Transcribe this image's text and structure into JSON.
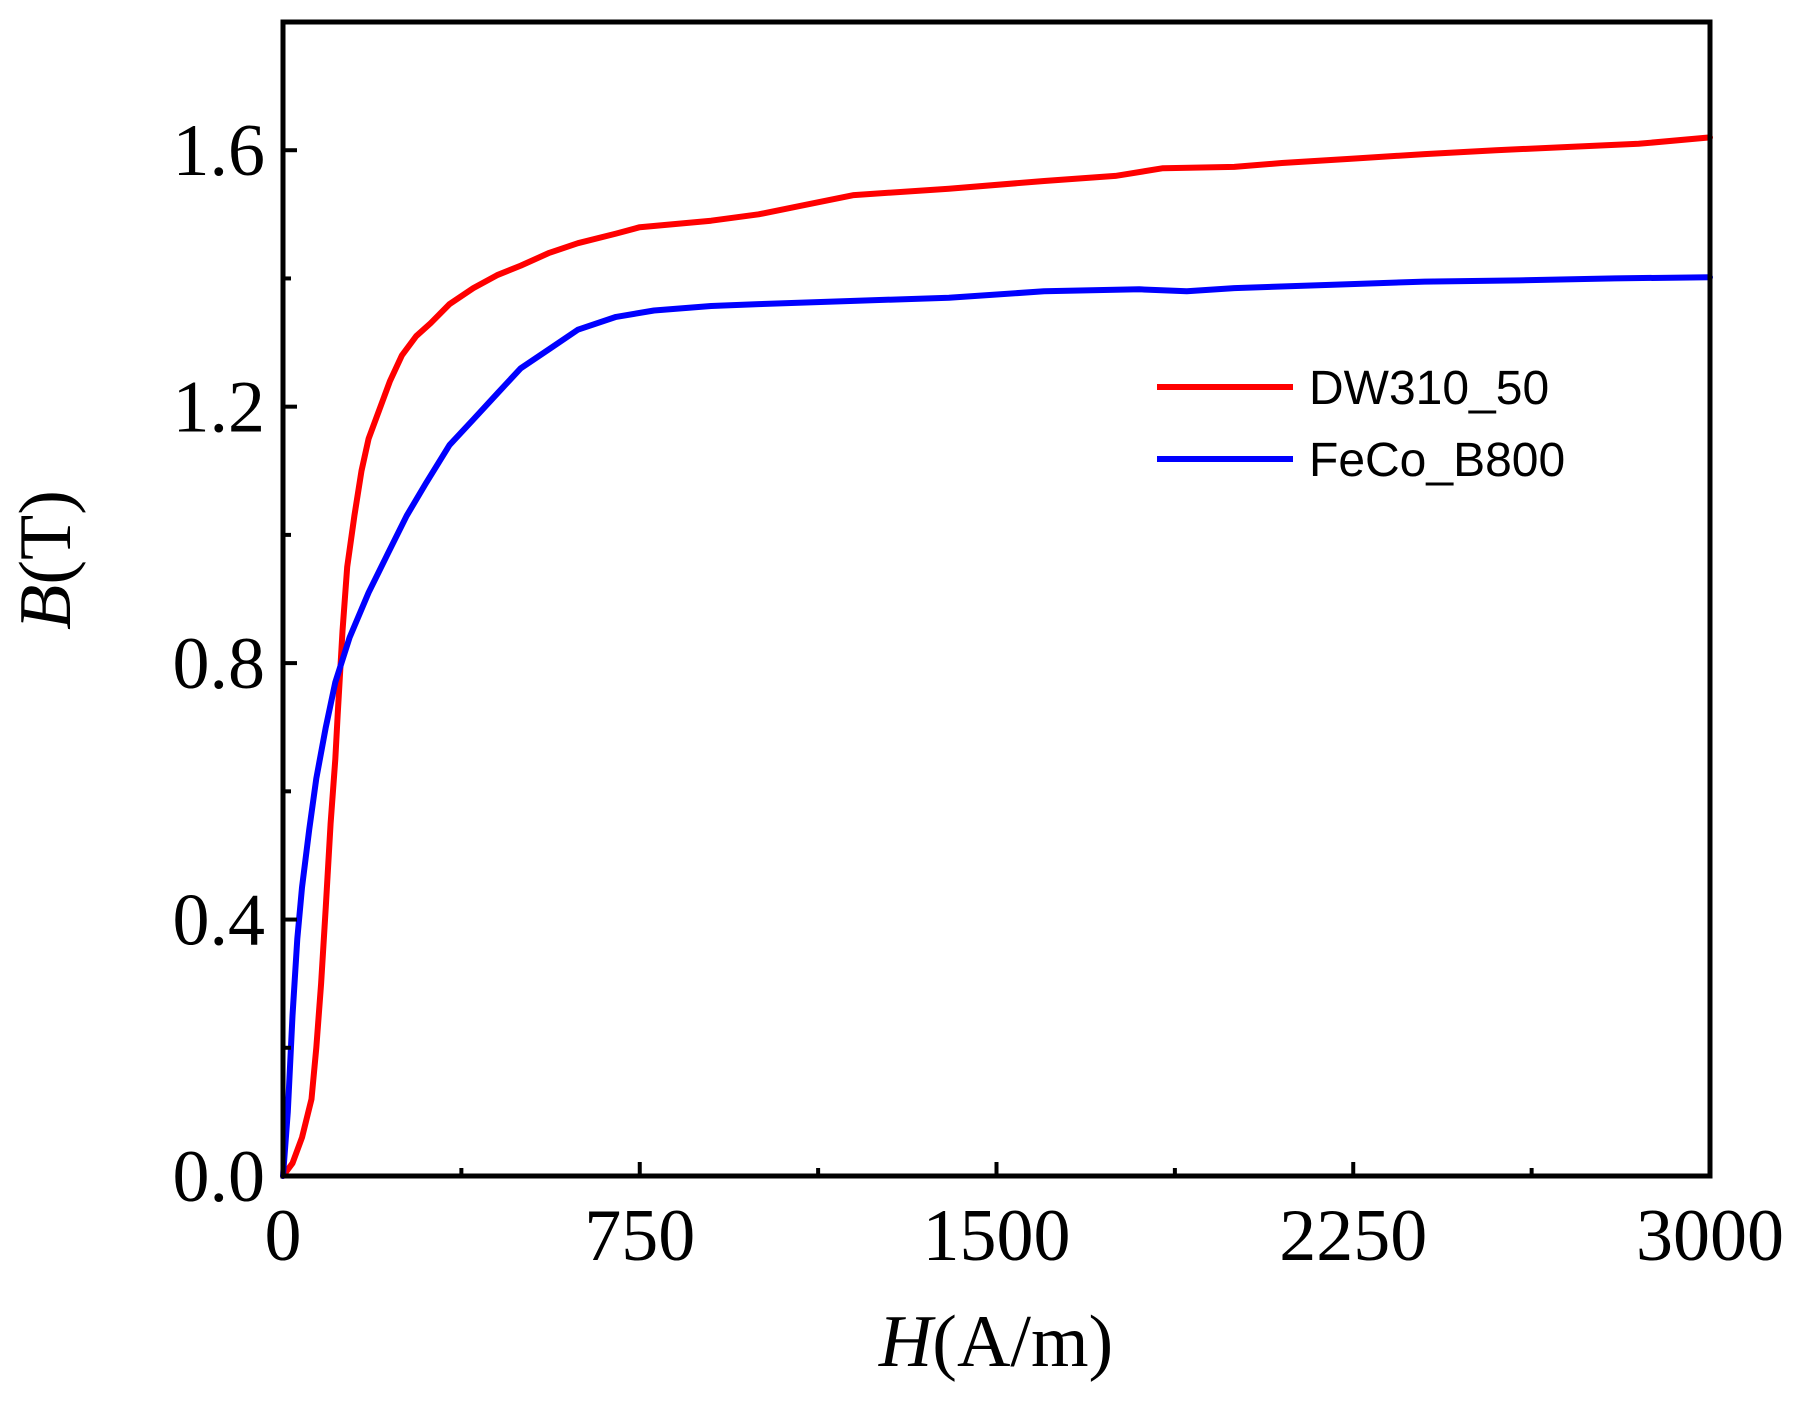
{
  "chart_data": {
    "type": "line",
    "title": "",
    "xlabel": {
      "var": "H",
      "unit": "(A/m)"
    },
    "ylabel": {
      "var": "B",
      "unit": "(T)"
    },
    "xlim": [
      0,
      3000
    ],
    "ylim": [
      0,
      1.8
    ],
    "xticks": [
      0,
      750,
      1500,
      2250,
      3000
    ],
    "xtick_labels": [
      "0",
      "750",
      "1500",
      "2250",
      "3000"
    ],
    "yticks": [
      0.0,
      0.4,
      0.8,
      1.2,
      1.6
    ],
    "ytick_labels": [
      "0.0",
      "0.4",
      "0.8",
      "1.2",
      "1.6"
    ],
    "grid": false,
    "legend_position": "right, upper-middle",
    "series": [
      {
        "name": "DW310_50",
        "color": "#ff0000",
        "points": [
          [
            0,
            0.0
          ],
          [
            20,
            0.02
          ],
          [
            40,
            0.06
          ],
          [
            60,
            0.12
          ],
          [
            70,
            0.2
          ],
          [
            80,
            0.3
          ],
          [
            90,
            0.42
          ],
          [
            100,
            0.55
          ],
          [
            110,
            0.65
          ],
          [
            115,
            0.72
          ],
          [
            125,
            0.85
          ],
          [
            135,
            0.95
          ],
          [
            150,
            1.03
          ],
          [
            165,
            1.1
          ],
          [
            180,
            1.15
          ],
          [
            200,
            1.19
          ],
          [
            225,
            1.24
          ],
          [
            250,
            1.28
          ],
          [
            280,
            1.31
          ],
          [
            310,
            1.33
          ],
          [
            350,
            1.36
          ],
          [
            400,
            1.385
          ],
          [
            450,
            1.405
          ],
          [
            500,
            1.42
          ],
          [
            560,
            1.44
          ],
          [
            620,
            1.455
          ],
          [
            700,
            1.47
          ],
          [
            750,
            1.48
          ],
          [
            900,
            1.49
          ],
          [
            1000,
            1.5
          ],
          [
            1100,
            1.515
          ],
          [
            1200,
            1.53
          ],
          [
            1400,
            1.54
          ],
          [
            1600,
            1.552
          ],
          [
            1750,
            1.56
          ],
          [
            1850,
            1.572
          ],
          [
            2000,
            1.574
          ],
          [
            2100,
            1.58
          ],
          [
            2250,
            1.587
          ],
          [
            2400,
            1.594
          ],
          [
            2550,
            1.6
          ],
          [
            2700,
            1.605
          ],
          [
            2850,
            1.61
          ],
          [
            3000,
            1.62
          ]
        ]
      },
      {
        "name": "FeCo_B800",
        "color": "#0000ff",
        "points": [
          [
            0,
            0.0
          ],
          [
            10,
            0.1
          ],
          [
            20,
            0.25
          ],
          [
            30,
            0.37
          ],
          [
            40,
            0.45
          ],
          [
            55,
            0.54
          ],
          [
            70,
            0.62
          ],
          [
            90,
            0.7
          ],
          [
            110,
            0.77
          ],
          [
            140,
            0.84
          ],
          [
            180,
            0.91
          ],
          [
            220,
            0.97
          ],
          [
            260,
            1.03
          ],
          [
            300,
            1.08
          ],
          [
            350,
            1.14
          ],
          [
            400,
            1.18
          ],
          [
            450,
            1.22
          ],
          [
            500,
            1.26
          ],
          [
            560,
            1.29
          ],
          [
            620,
            1.32
          ],
          [
            700,
            1.34
          ],
          [
            780,
            1.35
          ],
          [
            900,
            1.357
          ],
          [
            1000,
            1.36
          ],
          [
            1200,
            1.365
          ],
          [
            1400,
            1.37
          ],
          [
            1600,
            1.38
          ],
          [
            1800,
            1.383
          ],
          [
            1900,
            1.38
          ],
          [
            2000,
            1.385
          ],
          [
            2200,
            1.39
          ],
          [
            2400,
            1.395
          ],
          [
            2600,
            1.397
          ],
          [
            2800,
            1.4
          ],
          [
            3000,
            1.402
          ]
        ]
      }
    ]
  }
}
